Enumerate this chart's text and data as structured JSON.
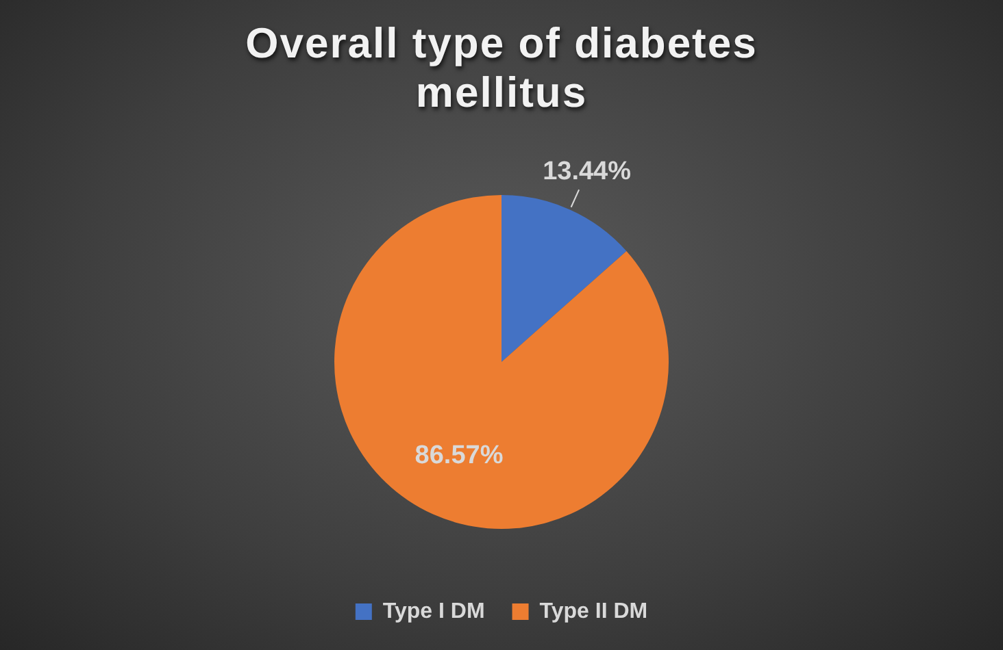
{
  "chart_data": {
    "type": "pie",
    "title": "Overall type of diabetes mellitus",
    "categories": [
      "Type I DM",
      "Type II DM"
    ],
    "values": [
      13.44,
      86.57
    ],
    "colors": [
      "#4472c4",
      "#ed7d31"
    ],
    "value_labels": [
      "13.44%",
      "86.57%"
    ],
    "legend": "bottom"
  }
}
